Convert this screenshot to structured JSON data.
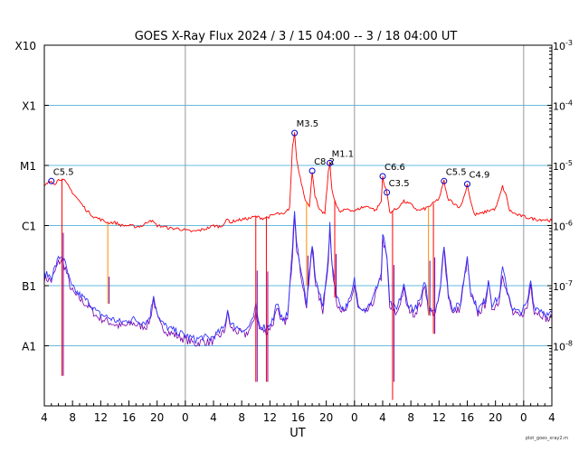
{
  "chart_data": {
    "type": "line",
    "title": "GOES X-Ray Flux   2024  /  3  /  15    04:00 --  3  /  18   04:00    UT",
    "xlabel": "UT",
    "footer": "plot_goes_xray2.m",
    "x_range_hours": [
      0,
      72
    ],
    "x_ticks": [
      {
        "h": 0,
        "label": "4"
      },
      {
        "h": 4,
        "label": "8"
      },
      {
        "h": 8,
        "label": "12"
      },
      {
        "h": 12,
        "label": "16"
      },
      {
        "h": 16,
        "label": "20"
      },
      {
        "h": 20,
        "label": "0"
      },
      {
        "h": 24,
        "label": "4"
      },
      {
        "h": 28,
        "label": "8"
      },
      {
        "h": 32,
        "label": "12"
      },
      {
        "h": 36,
        "label": "16"
      },
      {
        "h": 40,
        "label": "20"
      },
      {
        "h": 44,
        "label": "0"
      },
      {
        "h": 48,
        "label": "4"
      },
      {
        "h": 52,
        "label": "8"
      },
      {
        "h": 56,
        "label": "12"
      },
      {
        "h": 60,
        "label": "16"
      },
      {
        "h": 64,
        "label": "20"
      },
      {
        "h": 68,
        "label": "0"
      },
      {
        "h": 72,
        "label": "4"
      }
    ],
    "day_boundaries_hours": [
      20,
      44,
      68
    ],
    "y_scale": "log",
    "y_range_log10": [
      -9,
      -3
    ],
    "left_axis_ticks": [
      {
        "log": -3,
        "label": "X10"
      },
      {
        "log": -4,
        "label": "X1"
      },
      {
        "log": -5,
        "label": "M1"
      },
      {
        "log": -6,
        "label": "C1"
      },
      {
        "log": -7,
        "label": "B1"
      },
      {
        "log": -8,
        "label": "A1"
      }
    ],
    "right_axis_ticks": [
      {
        "log": -3,
        "base": "10",
        "exp": "-3"
      },
      {
        "log": -4,
        "base": "10",
        "exp": "-4"
      },
      {
        "log": -5,
        "base": "10",
        "exp": "-5"
      },
      {
        "log": -6,
        "base": "10",
        "exp": "-6"
      },
      {
        "log": -7,
        "base": "10",
        "exp": "-7"
      },
      {
        "log": -8,
        "base": "10",
        "exp": "-8"
      }
    ],
    "colors": {
      "long_channel": "#ff0000",
      "short_channel": "#3333ff",
      "secondary_short": "#7700aa",
      "gaps": "#ff8c00",
      "grid": "#66bbdd",
      "day_line": "#999999",
      "marker": "#0000cc"
    },
    "flares": [
      {
        "label": "C5.5",
        "h": 1.0,
        "log": -5.26
      },
      {
        "label": "M3.5",
        "h": 35.5,
        "log": -4.46
      },
      {
        "label": "C8.2",
        "h": 38.0,
        "log": -5.09
      },
      {
        "label": "M1.1",
        "h": 40.5,
        "log": -4.96
      },
      {
        "label": "C6.6",
        "h": 48.0,
        "log": -5.18
      },
      {
        "label": "C3.5",
        "h": 48.6,
        "log": -5.45
      },
      {
        "label": "C5.5",
        "h": 56.7,
        "log": -5.26
      },
      {
        "label": "C4.9",
        "h": 60.0,
        "log": -5.31
      }
    ],
    "series": [
      {
        "name": "long",
        "points": [
          [
            0,
            -5.35
          ],
          [
            0.6,
            -5.28
          ],
          [
            1.0,
            -5.26
          ],
          [
            1.5,
            -5.3
          ],
          [
            2.0,
            -5.24
          ],
          [
            2.5,
            -5.22
          ],
          [
            3.0,
            -5.28
          ],
          [
            4.0,
            -5.45
          ],
          [
            5.0,
            -5.6
          ],
          [
            6.0,
            -5.75
          ],
          [
            7.0,
            -5.85
          ],
          [
            8.0,
            -5.9
          ],
          [
            9.0,
            -5.95
          ],
          [
            10.0,
            -5.95
          ],
          [
            11.0,
            -6.0
          ],
          [
            12.0,
            -6.0
          ],
          [
            13.0,
            -6.02
          ],
          [
            14.0,
            -6.0
          ],
          [
            15.0,
            -5.9
          ],
          [
            15.5,
            -5.95
          ],
          [
            16.0,
            -6.0
          ],
          [
            17.0,
            -6.02
          ],
          [
            18.0,
            -6.05
          ],
          [
            19.0,
            -6.05
          ],
          [
            20.0,
            -6.08
          ],
          [
            21.0,
            -6.1
          ],
          [
            22.0,
            -6.08
          ],
          [
            23.0,
            -6.05
          ],
          [
            24.0,
            -6.0
          ],
          [
            25.0,
            -6.02
          ],
          [
            26.0,
            -5.9
          ],
          [
            26.5,
            -5.95
          ],
          [
            27.0,
            -5.92
          ],
          [
            28.0,
            -5.9
          ],
          [
            29.0,
            -5.88
          ],
          [
            30.0,
            -5.85
          ],
          [
            31.0,
            -5.88
          ],
          [
            32.0,
            -5.85
          ],
          [
            33.0,
            -5.8
          ],
          [
            34.0,
            -5.82
          ],
          [
            34.8,
            -5.7
          ],
          [
            35.2,
            -4.7
          ],
          [
            35.5,
            -4.46
          ],
          [
            35.8,
            -4.9
          ],
          [
            36.3,
            -5.2
          ],
          [
            37.0,
            -5.55
          ],
          [
            37.6,
            -5.7
          ],
          [
            38.0,
            -5.09
          ],
          [
            38.4,
            -5.5
          ],
          [
            39.0,
            -5.75
          ],
          [
            39.8,
            -5.8
          ],
          [
            40.3,
            -5.1
          ],
          [
            40.5,
            -4.96
          ],
          [
            40.8,
            -5.4
          ],
          [
            41.5,
            -5.7
          ],
          [
            42.0,
            -5.78
          ],
          [
            43.0,
            -5.72
          ],
          [
            44.0,
            -5.76
          ],
          [
            45.0,
            -5.7
          ],
          [
            46.0,
            -5.68
          ],
          [
            47.0,
            -5.75
          ],
          [
            47.8,
            -5.6
          ],
          [
            48.0,
            -5.18
          ],
          [
            48.3,
            -5.35
          ],
          [
            48.6,
            -5.45
          ],
          [
            49.0,
            -5.78
          ],
          [
            50.0,
            -5.72
          ],
          [
            51.0,
            -5.6
          ],
          [
            52.0,
            -5.65
          ],
          [
            53.0,
            -5.75
          ],
          [
            54.0,
            -5.72
          ],
          [
            55.0,
            -5.65
          ],
          [
            56.0,
            -5.55
          ],
          [
            56.7,
            -5.26
          ],
          [
            57.2,
            -5.55
          ],
          [
            58.0,
            -5.62
          ],
          [
            59.0,
            -5.7
          ],
          [
            59.6,
            -5.5
          ],
          [
            60.0,
            -5.31
          ],
          [
            60.5,
            -5.6
          ],
          [
            61.0,
            -5.82
          ],
          [
            62.0,
            -5.8
          ],
          [
            63.0,
            -5.75
          ],
          [
            64.0,
            -5.72
          ],
          [
            64.5,
            -5.55
          ],
          [
            65.0,
            -5.35
          ],
          [
            65.5,
            -5.5
          ],
          [
            66.0,
            -5.75
          ],
          [
            67.0,
            -5.82
          ],
          [
            68.0,
            -5.85
          ],
          [
            69.0,
            -5.88
          ],
          [
            70.0,
            -5.9
          ],
          [
            71.0,
            -5.9
          ],
          [
            72.0,
            -5.92
          ]
        ],
        "dropouts": [
          [
            2.5,
            -8.5
          ],
          [
            9.0,
            -7.3
          ],
          [
            30.0,
            -8.6
          ],
          [
            31.5,
            -8.6
          ],
          [
            37.2,
            -7.0
          ],
          [
            41.2,
            -7.2
          ],
          [
            49.4,
            -8.9
          ],
          [
            54.5,
            -7.5
          ],
          [
            55.2,
            -7.8
          ]
        ]
      },
      {
        "name": "short",
        "points": [
          [
            0,
            -6.8
          ],
          [
            1.0,
            -6.85
          ],
          [
            2.0,
            -6.55
          ],
          [
            2.5,
            -6.5
          ],
          [
            3.0,
            -6.65
          ],
          [
            3.8,
            -7.0
          ],
          [
            4.5,
            -7.1
          ],
          [
            5.5,
            -7.2
          ],
          [
            6.5,
            -7.3
          ],
          [
            7.5,
            -7.45
          ],
          [
            8.5,
            -7.5
          ],
          [
            9.5,
            -7.55
          ],
          [
            10.5,
            -7.6
          ],
          [
            11.5,
            -7.6
          ],
          [
            12.5,
            -7.55
          ],
          [
            13.5,
            -7.6
          ],
          [
            14.5,
            -7.6
          ],
          [
            15.0,
            -7.5
          ],
          [
            15.5,
            -7.15
          ],
          [
            16.0,
            -7.45
          ],
          [
            16.5,
            -7.6
          ],
          [
            17.5,
            -7.7
          ],
          [
            18.5,
            -7.75
          ],
          [
            19.5,
            -7.8
          ],
          [
            20.5,
            -7.85
          ],
          [
            21.5,
            -7.9
          ],
          [
            22.5,
            -7.85
          ],
          [
            23.5,
            -7.88
          ],
          [
            24.5,
            -7.8
          ],
          [
            25.5,
            -7.7
          ],
          [
            26.0,
            -7.4
          ],
          [
            26.5,
            -7.65
          ],
          [
            27.5,
            -7.7
          ],
          [
            28.5,
            -7.75
          ],
          [
            29.5,
            -7.6
          ],
          [
            30.0,
            -7.35
          ],
          [
            30.5,
            -7.65
          ],
          [
            31.5,
            -7.7
          ],
          [
            32.5,
            -7.55
          ],
          [
            33.0,
            -7.25
          ],
          [
            33.5,
            -7.55
          ],
          [
            34.5,
            -7.5
          ],
          [
            35.2,
            -6.4
          ],
          [
            35.5,
            -5.7
          ],
          [
            35.8,
            -6.3
          ],
          [
            36.5,
            -6.8
          ],
          [
            37.2,
            -7.3
          ],
          [
            38.0,
            -6.3
          ],
          [
            38.5,
            -6.9
          ],
          [
            39.5,
            -7.35
          ],
          [
            40.3,
            -6.5
          ],
          [
            40.5,
            -6.0
          ],
          [
            40.8,
            -6.6
          ],
          [
            41.5,
            -7.2
          ],
          [
            42.5,
            -7.4
          ],
          [
            43.5,
            -7.2
          ],
          [
            44.0,
            -6.9
          ],
          [
            44.5,
            -7.3
          ],
          [
            45.5,
            -7.4
          ],
          [
            46.5,
            -7.25
          ],
          [
            47.2,
            -7.0
          ],
          [
            47.8,
            -6.8
          ],
          [
            48.0,
            -6.15
          ],
          [
            48.6,
            -6.5
          ],
          [
            49.0,
            -7.3
          ],
          [
            50.0,
            -7.4
          ],
          [
            51.0,
            -7.0
          ],
          [
            51.5,
            -7.3
          ],
          [
            52.5,
            -7.4
          ],
          [
            53.5,
            -7.2
          ],
          [
            54.0,
            -6.9
          ],
          [
            54.5,
            -7.35
          ],
          [
            55.5,
            -7.4
          ],
          [
            56.2,
            -7.0
          ],
          [
            56.7,
            -6.3
          ],
          [
            57.3,
            -7.1
          ],
          [
            58.0,
            -7.4
          ],
          [
            59.0,
            -7.3
          ],
          [
            59.5,
            -6.9
          ],
          [
            60.0,
            -6.5
          ],
          [
            60.5,
            -7.1
          ],
          [
            61.5,
            -7.4
          ],
          [
            62.5,
            -7.25
          ],
          [
            63.0,
            -6.9
          ],
          [
            63.5,
            -7.3
          ],
          [
            64.5,
            -7.2
          ],
          [
            65.0,
            -6.7
          ],
          [
            65.5,
            -7.0
          ],
          [
            66.5,
            -7.4
          ],
          [
            67.5,
            -7.45
          ],
          [
            68.5,
            -7.3
          ],
          [
            69.0,
            -6.9
          ],
          [
            69.5,
            -7.35
          ],
          [
            70.5,
            -7.4
          ],
          [
            71.5,
            -7.5
          ],
          [
            72.0,
            -7.45
          ]
        ]
      }
    ]
  }
}
